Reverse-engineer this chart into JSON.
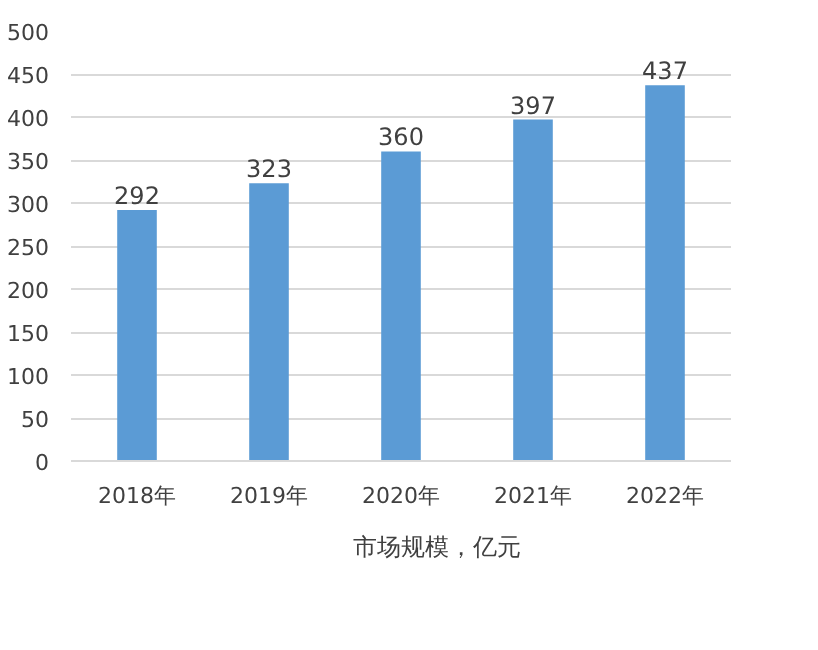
{
  "chart_data": {
    "type": "bar",
    "categories": [
      "2018年",
      "2019年",
      "2020年",
      "2021年",
      "2022年"
    ],
    "series": [
      {
        "name": "市场规模，亿元",
        "color": "#5b9bd5",
        "values": [
          292,
          323,
          360,
          397,
          437
        ]
      }
    ],
    "ylim": [
      0,
      500
    ],
    "yticks": [
      0,
      50,
      100,
      150,
      200,
      250,
      300,
      350,
      400,
      450,
      500
    ],
    "grid": "y",
    "data_labels": true,
    "legend": "bottom"
  }
}
